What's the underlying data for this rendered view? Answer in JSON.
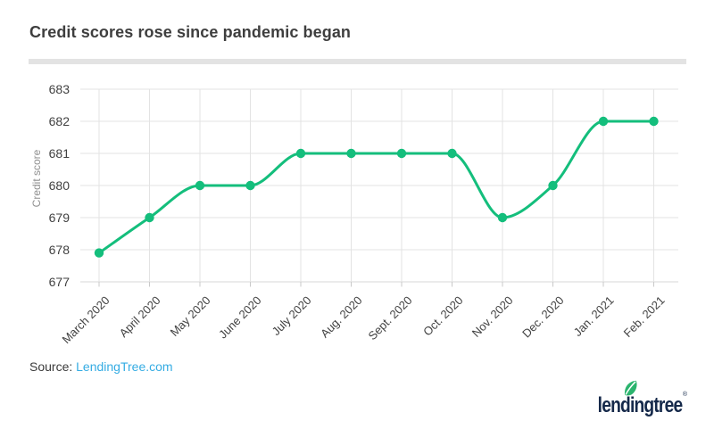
{
  "header": {
    "title": "Credit scores rose since pandemic began"
  },
  "chart_data": {
    "type": "line",
    "title": "Credit scores rose since pandemic began",
    "categories": [
      "March 2020",
      "April 2020",
      "May 2020",
      "June 2020",
      "July 2020",
      "Aug. 2020",
      "Sept. 2020",
      "Oct. 2020",
      "Nov. 2020",
      "Dec. 2020",
      "Jan. 2021",
      "Feb. 2021"
    ],
    "series": [
      {
        "name": "Credit score",
        "values": [
          677.9,
          679,
          680,
          680,
          681,
          681,
          681,
          681,
          679,
          680,
          682,
          682
        ]
      }
    ],
    "xlabel": "",
    "ylabel": "Credit score",
    "ylim": [
      677,
      683
    ],
    "yticks": [
      677,
      678,
      679,
      680,
      681,
      682,
      683
    ],
    "grid": true,
    "legend": "none",
    "line_color": "#14be7c",
    "point_color": "#14be7c",
    "grid_color": "#e3e3e3",
    "axis_color": "#d7d7d7",
    "tick_color": "#c9c9c9"
  },
  "footer": {
    "source_label": "Source:",
    "source_link": "LendingTree.com",
    "logo_text": "lendingtree",
    "logo_reg": "®",
    "logo_navy": "#15294a",
    "leaf_green": "#2bb46e"
  }
}
